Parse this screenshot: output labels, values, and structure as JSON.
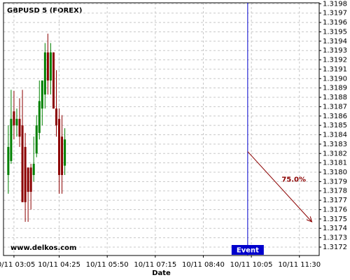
{
  "chart_data": {
    "type": "candlestick",
    "title": "GBPUSD 5 (FOREX)",
    "watermark": "www.delkos.com",
    "x_label": "Date",
    "x": [
      -2,
      -1,
      0,
      1,
      2,
      3,
      4,
      5,
      6,
      7,
      8,
      9,
      10,
      11,
      12,
      13,
      14,
      15,
      16,
      17,
      18
    ],
    "open": [
      1.31797,
      1.31812,
      1.31865,
      1.3185,
      1.31857,
      1.3185,
      1.31827,
      1.31805,
      1.31805,
      1.31797,
      1.3182,
      1.31842,
      1.31868,
      1.31883,
      1.31928,
      1.31898,
      1.31928,
      1.31868,
      1.31857,
      1.31838,
      1.31807
    ],
    "high": [
      1.3185,
      1.31888,
      1.31887,
      1.31868,
      1.31879,
      1.31888,
      1.31842,
      1.31805,
      1.31809,
      1.31838,
      1.31861,
      1.31898,
      1.31898,
      1.31938,
      1.31948,
      1.31938,
      1.31928,
      1.31909,
      1.31868,
      1.31861,
      1.31847
    ],
    "low": [
      1.31777,
      1.31809,
      1.31835,
      1.31838,
      1.31827,
      1.31768,
      1.31747,
      1.31747,
      1.3176,
      1.3179,
      1.31816,
      1.31835,
      1.3185,
      1.31868,
      1.31883,
      1.31883,
      1.31868,
      1.31838,
      1.31777,
      1.31777,
      1.31797
    ],
    "close": [
      1.31827,
      1.31857,
      1.3185,
      1.31857,
      1.31838,
      1.31768,
      1.31768,
      1.31779,
      1.31779,
      1.31809,
      1.3185,
      1.31876,
      1.31898,
      1.31928,
      1.31898,
      1.31928,
      1.31868,
      1.3185,
      1.31797,
      1.31797,
      1.31835
    ],
    "up_color": "#008000",
    "down_color": "#8b0000",
    "event": {
      "label": "Event",
      "x": 82.7,
      "color": "#0000cc"
    },
    "forecast": {
      "label": "75.0%",
      "x": [
        82.7,
        105.4
      ],
      "y": [
        1.31822,
        1.31747
      ],
      "color": "#8b0000"
    },
    "xlim": [
      -3.7,
      108
    ],
    "xticks": [
      {
        "value": 0,
        "label": "10/11 03:05"
      },
      {
        "value": 16,
        "label": "10/11 04:25"
      },
      {
        "value": 33,
        "label": "10/11 05:50"
      },
      {
        "value": 50,
        "label": "10/11 07:15"
      },
      {
        "value": 67,
        "label": "10/11 08:40"
      },
      {
        "value": 84,
        "label": "10/11 10:05"
      },
      {
        "value": 101,
        "label": "10/11 11:30"
      }
    ],
    "ylim": [
      1.31711,
      1.31981
    ],
    "yticks": [
      1.3172,
      1.3173,
      1.3174,
      1.3175,
      1.3176,
      1.3177,
      1.3178,
      1.3179,
      {
        "value": 1.318,
        "label": "1.3180"
      },
      1.3181,
      1.3182,
      1.3183,
      1.3184,
      1.3185,
      1.3186,
      1.3187,
      1.3188,
      1.3189,
      {
        "value": 1.319,
        "label": "1.3190"
      },
      1.3191,
      1.3192,
      1.3193,
      1.3194,
      1.3195,
      1.3196,
      1.3197,
      1.3198
    ],
    "grid": true
  }
}
